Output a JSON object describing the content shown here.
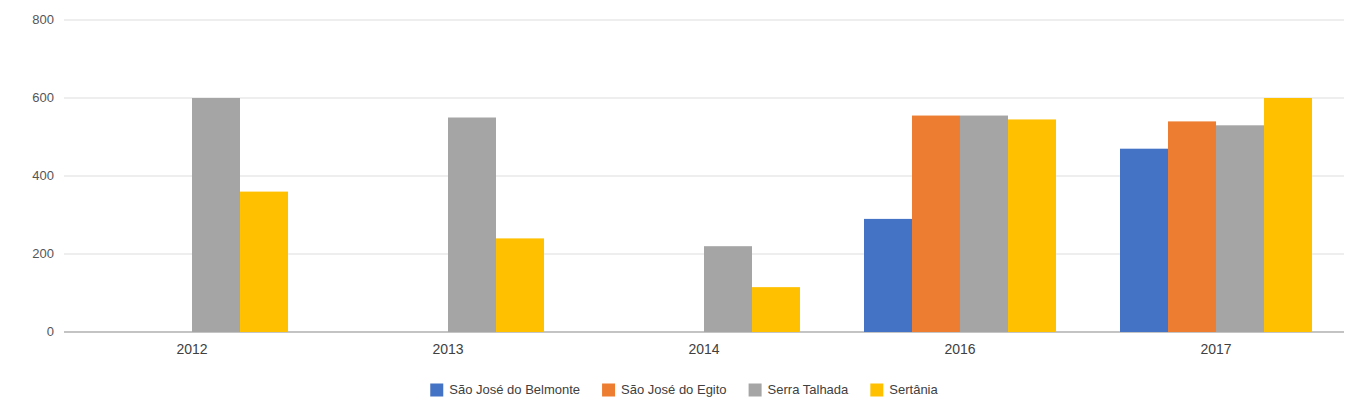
{
  "chart_data": {
    "type": "bar",
    "categories": [
      "2012",
      "2013",
      "2014",
      "2016",
      "2017"
    ],
    "series": [
      {
        "name": "São José do Belmonte",
        "color": "#4472C4",
        "values": [
          0,
          0,
          0,
          290,
          470
        ]
      },
      {
        "name": "São José do Egito",
        "color": "#ED7D31",
        "values": [
          0,
          0,
          0,
          555,
          540
        ]
      },
      {
        "name": "Serra Talhada",
        "color": "#A5A5A5",
        "values": [
          600,
          550,
          220,
          555,
          530
        ]
      },
      {
        "name": "Sertânia",
        "color": "#FFC000",
        "values": [
          360,
          240,
          115,
          545,
          600
        ]
      }
    ],
    "ylim": [
      0,
      800
    ],
    "yticks": [
      0,
      200,
      400,
      600,
      800
    ],
    "grid": true,
    "legend": "bottom"
  }
}
